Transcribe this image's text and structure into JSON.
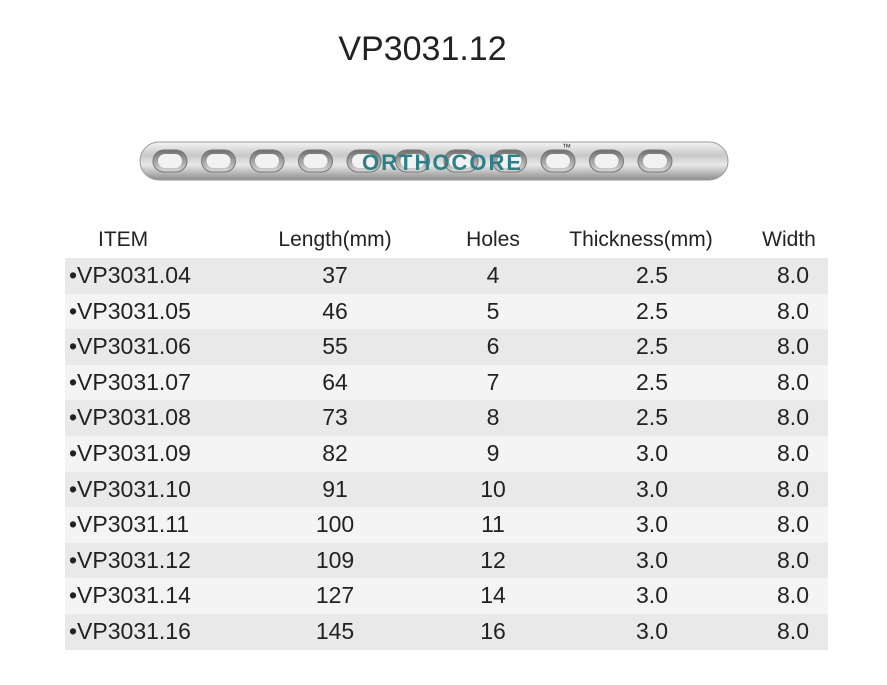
{
  "title": "VP3031.12",
  "logo": {
    "text": "ORTHOCORE",
    "mark": "™"
  },
  "table": {
    "header": [
      "ITEM",
      "Length(mm)",
      "Holes",
      "Thickness(mm)",
      "Width"
    ],
    "rows": [
      [
        "•VP3031.04",
        "37",
        "4",
        "2.5",
        "8.0"
      ],
      [
        "•VP3031.05",
        "46",
        "5",
        "2.5",
        "8.0"
      ],
      [
        "•VP3031.06",
        "55",
        "6",
        "2.5",
        "8.0"
      ],
      [
        "•VP3031.07",
        "64",
        "7",
        "2.5",
        "8.0"
      ],
      [
        "•VP3031.08",
        "73",
        "8",
        "2.5",
        "8.0"
      ],
      [
        "•VP3031.09",
        "82",
        "9",
        "3.0",
        "8.0"
      ],
      [
        "•VP3031.10",
        "91",
        "10",
        "3.0",
        "8.0"
      ],
      [
        "•VP3031.11",
        "100",
        "11",
        "3.0",
        "8.0"
      ],
      [
        "•VP3031.12",
        "109",
        "12",
        "3.0",
        "8.0"
      ],
      [
        "•VP3031.14",
        "127",
        "14",
        "3.0",
        "8.0"
      ],
      [
        "•VP3031.16",
        "145",
        "16",
        "3.0",
        "8.0"
      ]
    ]
  }
}
